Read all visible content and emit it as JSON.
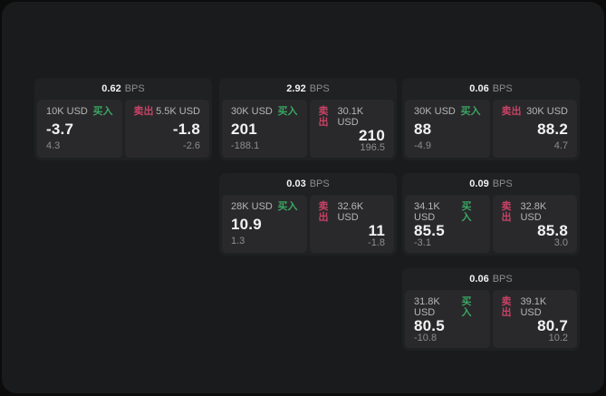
{
  "colors": {
    "backdrop": "#0c0c0c",
    "window-bg": "#1a1b1c",
    "card-bg": "#202122",
    "subcard-bg": "#29292b",
    "text-primary": "#f2f2f2",
    "text-secondary": "#b6b6b6",
    "text-muted": "#8d8d8d",
    "buy-green": "#3BA563",
    "sell-red": "#C84266"
  },
  "labels": {
    "bps_unit": "BPS",
    "buy": "买入",
    "sell": "卖出"
  },
  "cards": [
    {
      "bps": "0.62",
      "buy": {
        "amount": "10K USD",
        "value": "-3.7",
        "delta": "4.3"
      },
      "sell": {
        "amount": "5.5K USD",
        "value": "-1.8",
        "delta": "-2.6"
      }
    },
    {
      "bps": "2.92",
      "buy": {
        "amount": "30K USD",
        "value": "201",
        "delta": "-188.1"
      },
      "sell": {
        "amount": "30.1K USD",
        "value": "210",
        "delta": "196.5"
      }
    },
    {
      "bps": "0.06",
      "buy": {
        "amount": "30K USD",
        "value": "88",
        "delta": "-4.9"
      },
      "sell": {
        "amount": "30K USD",
        "value": "88.2",
        "delta": "4.7"
      }
    },
    {
      "bps": "0.03",
      "buy": {
        "amount": "28K USD",
        "value": "10.9",
        "delta": "1.3"
      },
      "sell": {
        "amount": "32.6K USD",
        "value": "11",
        "delta": "-1.8"
      }
    },
    {
      "bps": "0.09",
      "buy": {
        "amount": "34.1K USD",
        "value": "85.5",
        "delta": "-3.1"
      },
      "sell": {
        "amount": "32.8K USD",
        "value": "85.8",
        "delta": "3.0"
      }
    },
    {
      "bps": "0.06",
      "buy": {
        "amount": "31.8K USD",
        "value": "80.5",
        "delta": "-10.8"
      },
      "sell": {
        "amount": "39.1K USD",
        "value": "80.7",
        "delta": "10.2"
      }
    }
  ]
}
